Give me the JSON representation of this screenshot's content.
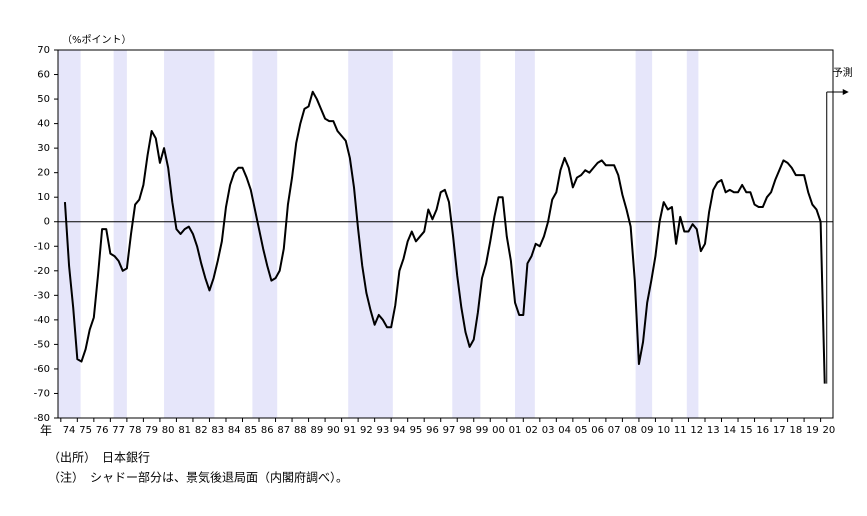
{
  "chart_data": {
    "type": "line",
    "y_unit_label": "（%ポイント）",
    "x_unit_label": "年",
    "forecast_label": "予測",
    "notes": [
      "（出所）　日本銀行",
      "（注）　シャドー部分は、景気後退局面（内閣府調べ）。"
    ],
    "color": "#000000",
    "shade_color": "#e6e6fa",
    "recessions": [
      [
        1973.85,
        1975.2
      ],
      [
        1977.2,
        1978.0
      ],
      [
        1980.25,
        1983.3
      ],
      [
        1985.6,
        1987.1
      ],
      [
        1991.4,
        1994.1
      ],
      [
        1997.7,
        1999.4
      ],
      [
        2001.5,
        2002.7
      ],
      [
        2008.8,
        2009.8
      ],
      [
        2011.9,
        2012.6
      ]
    ],
    "xlim": [
      1973.83,
      2020.75
    ],
    "ylim": [
      -80,
      70
    ],
    "yticks": [
      -80,
      -70,
      -60,
      -50,
      -40,
      -30,
      -20,
      -10,
      0,
      10,
      20,
      30,
      40,
      50,
      60,
      70
    ],
    "xticks": [
      {
        "value": 1974.5,
        "label": "74"
      },
      {
        "value": 1975.5,
        "label": "75"
      },
      {
        "value": 1976.5,
        "label": "76"
      },
      {
        "value": 1977.5,
        "label": "77"
      },
      {
        "value": 1978.5,
        "label": "78"
      },
      {
        "value": 1979.5,
        "label": "79"
      },
      {
        "value": 1980.5,
        "label": "80"
      },
      {
        "value": 1981.5,
        "label": "81"
      },
      {
        "value": 1982.5,
        "label": "82"
      },
      {
        "value": 1983.5,
        "label": "83"
      },
      {
        "value": 1984.5,
        "label": "84"
      },
      {
        "value": 1985.5,
        "label": "85"
      },
      {
        "value": 1986.5,
        "label": "86"
      },
      {
        "value": 1987.5,
        "label": "87"
      },
      {
        "value": 1988.5,
        "label": "88"
      },
      {
        "value": 1989.5,
        "label": "89"
      },
      {
        "value": 1990.5,
        "label": "90"
      },
      {
        "value": 1991.5,
        "label": "91"
      },
      {
        "value": 1992.5,
        "label": "92"
      },
      {
        "value": 1993.5,
        "label": "93"
      },
      {
        "value": 1994.5,
        "label": "94"
      },
      {
        "value": 1995.5,
        "label": "95"
      },
      {
        "value": 1996.5,
        "label": "96"
      },
      {
        "value": 1997.5,
        "label": "97"
      },
      {
        "value": 1998.5,
        "label": "98"
      },
      {
        "value": 1999.5,
        "label": "99"
      },
      {
        "value": 2000.5,
        "label": "00"
      },
      {
        "value": 2001.5,
        "label": "01"
      },
      {
        "value": 2002.5,
        "label": "02"
      },
      {
        "value": 2003.5,
        "label": "03"
      },
      {
        "value": 2004.5,
        "label": "04"
      },
      {
        "value": 2005.5,
        "label": "05"
      },
      {
        "value": 2006.5,
        "label": "06"
      },
      {
        "value": 2007.5,
        "label": "07"
      },
      {
        "value": 2008.5,
        "label": "08"
      },
      {
        "value": 2009.5,
        "label": "09"
      },
      {
        "value": 2010.5,
        "label": "10"
      },
      {
        "value": 2011.5,
        "label": "11"
      },
      {
        "value": 2012.5,
        "label": "12"
      },
      {
        "value": 2013.5,
        "label": "13"
      },
      {
        "value": 2014.5,
        "label": "14"
      },
      {
        "value": 2015.5,
        "label": "15"
      },
      {
        "value": 2016.5,
        "label": "16"
      },
      {
        "value": 2017.5,
        "label": "17"
      },
      {
        "value": 2018.5,
        "label": "18"
      },
      {
        "value": 2019.5,
        "label": "19"
      },
      {
        "value": 2020.5,
        "label": "20"
      }
    ],
    "x": [
      1974.25,
      1974.5,
      1974.75,
      1975,
      1975.25,
      1975.5,
      1975.75,
      1976,
      1976.25,
      1976.5,
      1976.75,
      1977,
      1977.25,
      1977.5,
      1977.75,
      1978,
      1978.25,
      1978.5,
      1978.75,
      1979,
      1979.25,
      1979.5,
      1979.75,
      1980,
      1980.25,
      1980.5,
      1980.75,
      1981,
      1981.25,
      1981.5,
      1981.75,
      1982,
      1982.25,
      1982.5,
      1982.75,
      1983,
      1983.25,
      1983.5,
      1983.75,
      1984,
      1984.25,
      1984.5,
      1984.75,
      1985,
      1985.25,
      1985.5,
      1985.75,
      1986,
      1986.25,
      1986.5,
      1986.75,
      1987,
      1987.25,
      1987.5,
      1987.75,
      1988,
      1988.25,
      1988.5,
      1988.75,
      1989,
      1989.25,
      1989.5,
      1989.75,
      1990,
      1990.25,
      1990.5,
      1990.75,
      1991,
      1991.25,
      1991.5,
      1991.75,
      1992,
      1992.25,
      1992.5,
      1992.75,
      1993,
      1993.25,
      1993.5,
      1993.75,
      1994,
      1994.25,
      1994.5,
      1994.75,
      1995,
      1995.25,
      1995.5,
      1995.75,
      1996,
      1996.25,
      1996.5,
      1996.75,
      1997,
      1997.25,
      1997.5,
      1997.75,
      1998,
      1998.25,
      1998.5,
      1998.75,
      1999,
      1999.25,
      1999.5,
      1999.75,
      2000,
      2000.25,
      2000.5,
      2000.75,
      2001,
      2001.25,
      2001.5,
      2001.75,
      2002,
      2002.25,
      2002.5,
      2002.75,
      2003,
      2003.25,
      2003.5,
      2003.75,
      2004,
      2004.25,
      2004.5,
      2004.75,
      2005,
      2005.25,
      2005.5,
      2005.75,
      2006,
      2006.25,
      2006.5,
      2006.75,
      2007,
      2007.25,
      2007.5,
      2007.75,
      2008,
      2008.25,
      2008.5,
      2008.75,
      2009,
      2009.25,
      2009.5,
      2009.75,
      2010,
      2010.25,
      2010.5,
      2010.75,
      2011,
      2011.25,
      2011.5,
      2011.75,
      2012,
      2012.25,
      2012.5,
      2012.75,
      2013,
      2013.25,
      2013.5,
      2013.75,
      2014,
      2014.25,
      2014.5,
      2014.75,
      2015,
      2015.25,
      2015.5,
      2015.75,
      2016,
      2016.25,
      2016.5,
      2016.75,
      2017,
      2017.25,
      2017.5,
      2017.75,
      2018,
      2018.25,
      2018.5,
      2018.75,
      2019,
      2019.25,
      2019.5,
      2019.75,
      2020,
      2020.25
    ],
    "values": [
      8,
      -18,
      -35,
      -56,
      -57,
      -52,
      -44,
      -39,
      -22,
      -3,
      -3,
      -13,
      -14,
      -16,
      -20,
      -19,
      -5,
      7,
      9,
      15,
      27,
      37,
      34,
      24,
      30,
      22,
      8,
      -3,
      -5,
      -3,
      -2,
      -5,
      -10,
      -17,
      -23,
      -28,
      -23,
      -16,
      -8,
      6,
      15,
      20,
      22,
      22,
      18,
      13,
      5,
      -3,
      -11,
      -18,
      -24,
      -23,
      -20,
      -11,
      7,
      18,
      32,
      40,
      46,
      47,
      53,
      50,
      46,
      42,
      41,
      41,
      37,
      35,
      33,
      26,
      14,
      -3,
      -18,
      -29,
      -36,
      -42,
      -38,
      -40,
      -43,
      -43,
      -34,
      -20,
      -15,
      -8,
      -4,
      -8,
      -6,
      -4,
      5,
      1,
      5,
      12,
      13,
      8,
      -6,
      -22,
      -35,
      -45,
      -51,
      -48,
      -37,
      -23,
      -17,
      -8,
      2,
      10,
      10,
      -6,
      -16,
      -33,
      -38,
      -38,
      -17,
      -14,
      -9,
      -10,
      -6,
      0,
      9,
      12,
      21,
      26,
      22,
      14,
      18,
      19,
      21,
      20,
      22,
      24,
      25,
      23,
      23,
      23,
      19,
      11,
      5,
      -2,
      -24,
      -58,
      -49,
      -33,
      -24,
      -14,
      0,
      8,
      5,
      6,
      -9,
      2,
      -4,
      -4,
      -1,
      -3,
      -12,
      -9,
      4,
      13,
      16,
      17,
      12,
      13,
      12,
      12,
      15,
      12,
      12,
      7,
      6,
      6,
      10,
      12,
      17,
      21,
      25,
      24,
      22,
      19,
      19,
      19,
      12,
      7,
      5,
      0,
      -66
    ]
  }
}
